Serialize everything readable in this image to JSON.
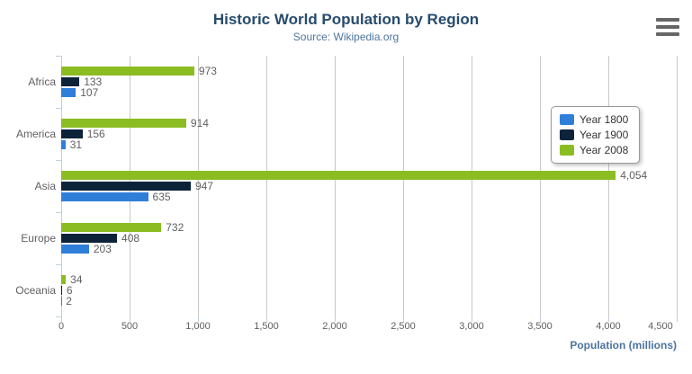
{
  "chart": {
    "title": "Historic World Population by Region",
    "subtitle": "Source: Wikipedia.org",
    "axis_title": "Population (millions)"
  },
  "icons": {
    "menu": "hamburger-menu-icon"
  },
  "colors": {
    "title": "#274b6d",
    "subtitle": "#4d759e",
    "axis_title": "#4d759e",
    "gridline": "#c8c8c8",
    "axis_line": "#c0d0e0",
    "label_gray": "#606060",
    "legend_text": "#333333",
    "menu_icon": "#666666",
    "series_year_1800": "#2f7ed8",
    "series_year_1900": "#0d233a",
    "series_year_2008": "#8bbc21"
  },
  "chart_data": {
    "type": "bar",
    "orientation": "horizontal",
    "title": "Historic World Population by Region",
    "subtitle": "Source: Wikipedia.org",
    "categories": [
      "Africa",
      "America",
      "Asia",
      "Europe",
      "Oceania"
    ],
    "series": [
      {
        "name": "Year 1800",
        "color": "#2f7ed8",
        "values": [
          107,
          31,
          635,
          203,
          2
        ]
      },
      {
        "name": "Year 1900",
        "color": "#0d233a",
        "values": [
          133,
          156,
          947,
          408,
          6
        ]
      },
      {
        "name": "Year 2008",
        "color": "#8bbc21",
        "values": [
          973,
          914,
          4054,
          732,
          34
        ]
      }
    ],
    "bar_visual_order_top_to_bottom": [
      "Year 2008",
      "Year 1900",
      "Year 1800"
    ],
    "data_labels": true,
    "xlabel": "Population (millions)",
    "ylabel": "",
    "xlim": [
      0,
      4500
    ],
    "tick_interval": 500,
    "x_tick_labels": [
      "0",
      "500",
      "1,000",
      "1,500",
      "2,000",
      "2,500",
      "3,000",
      "3,500",
      "4,000",
      "4,500"
    ],
    "grid": true,
    "legend_position": "right-floating"
  }
}
